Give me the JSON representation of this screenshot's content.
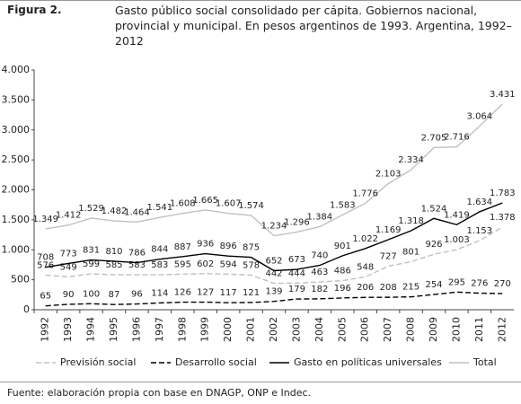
{
  "figure_label": "Figura 2.",
  "source": "Fuente: elaboración propia con base en DNAGP, ONP e Indec.",
  "chart_data": {
    "type": "line",
    "title": "Gasto público social consolidado per cápita. Gobiernos nacional, provincial y municipal. En pesos argentinos de 1993. Argentina, 1992–2012",
    "categories": [
      "1992",
      "1993",
      "1994",
      "1995",
      "1996",
      "1997",
      "1998",
      "1999",
      "2000",
      "2001",
      "2002",
      "2003",
      "2004",
      "2005",
      "2006",
      "2007",
      "2008",
      "2009",
      "2010",
      "2011",
      "2012"
    ],
    "ylim": [
      0,
      4000
    ],
    "yticks": [
      0,
      500,
      {
        "value": 1000,
        "label": "1.000"
      },
      {
        "value": 1500,
        "label": "1.500"
      },
      {
        "value": 2000,
        "label": "2.000"
      },
      {
        "value": 2500,
        "label": "2.500"
      },
      {
        "value": 3000,
        "label": "3.000"
      },
      {
        "value": 3500,
        "label": "3.500"
      },
      {
        "value": 4000,
        "label": "4.000"
      }
    ],
    "grid": false,
    "legend": "bottom",
    "series": [
      {
        "name": "Previsión social",
        "color": "#c0c0c0",
        "dashed": true,
        "values": [
          576,
          549,
          599,
          585,
          583,
          583,
          595,
          602,
          594,
          578,
          442,
          444,
          463,
          486,
          548,
          727,
          801,
          926,
          1003,
          1153,
          1378
        ],
        "value_labels": [
          "576",
          "549",
          "599",
          "585",
          "583",
          "583",
          "595",
          "602",
          "594",
          "578",
          "442",
          "444",
          "463",
          "486",
          "548",
          "727",
          "801",
          "926",
          "1.003",
          "1.153",
          "1.378"
        ]
      },
      {
        "name": "Desarrollo social",
        "color": "#000000",
        "dashed": true,
        "values": [
          65,
          90,
          100,
          87,
          96,
          114,
          126,
          127,
          117,
          121,
          139,
          179,
          182,
          196,
          206,
          208,
          215,
          254,
          295,
          276,
          270
        ]
      },
      {
        "name": "Gasto en políticas universales",
        "color": "#000000",
        "dashed": false,
        "values": [
          708,
          773,
          831,
          810,
          786,
          844,
          887,
          936,
          896,
          875,
          652,
          673,
          740,
          901,
          1022,
          1169,
          1318,
          1524,
          1419,
          1634,
          1783
        ],
        "value_labels": [
          "708",
          "773",
          "831",
          "810",
          "786",
          "844",
          "887",
          "936",
          "896",
          "875",
          "652",
          "673",
          "740",
          "901",
          "1.022",
          "1.169",
          "1.318",
          "1.524",
          "1.419",
          "1.634",
          "1.783"
        ]
      },
      {
        "name": "Total",
        "color": "#c0c0c0",
        "dashed": false,
        "values": [
          1349,
          1412,
          1529,
          1482,
          1464,
          1541,
          1608,
          1665,
          1607,
          1574,
          1234,
          1296,
          1384,
          1583,
          1776,
          2103,
          2334,
          2705,
          2716,
          3064,
          3431
        ],
        "value_labels": [
          "1.349",
          "1.412",
          "1.529",
          "1.482",
          "1.464",
          "1.541",
          "1.608",
          "1.665",
          "1.607",
          "1.574",
          "1.234",
          "1.296",
          "1.384",
          "1.583",
          "1.776",
          "2.103",
          "2.334",
          "2.705",
          "2.716",
          "3.064",
          "3.431"
        ]
      }
    ]
  }
}
